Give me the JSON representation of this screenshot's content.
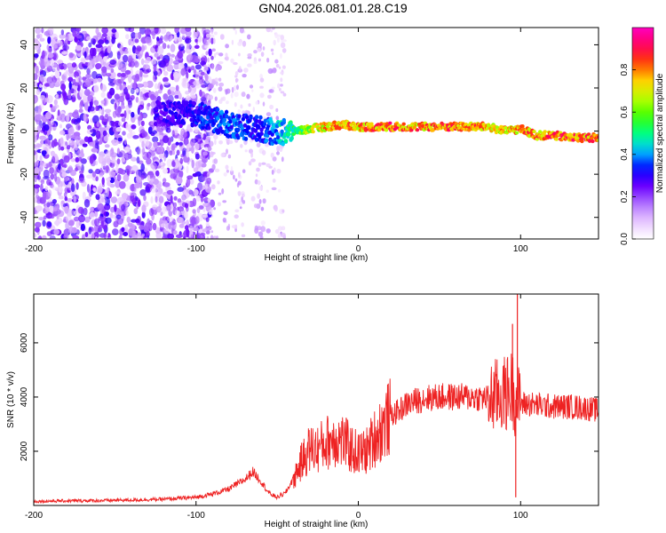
{
  "title": "GN04.2026.081.01.28.C19",
  "chart_data": [
    {
      "type": "heatmap",
      "xlabel": "Height of straight line (km)",
      "ylabel": "Frequency (Hz)",
      "xlim": [
        -200,
        148
      ],
      "ylim": [
        -50,
        48
      ],
      "x_ticks": [
        -200,
        -100,
        0,
        100
      ],
      "y_ticks": [
        -40,
        -20,
        0,
        20,
        40
      ],
      "colorbar": {
        "label": "Normalized spectral amplitude",
        "range": [
          0,
          1
        ],
        "ticks": [
          0.0,
          0.2,
          0.4,
          0.6,
          0.8
        ],
        "colors": [
          "#ffffff",
          "#e8c8ff",
          "#b070ff",
          "#6a00ff",
          "#0000ff",
          "#00c8ff",
          "#00ff80",
          "#40ff00",
          "#c0ff00",
          "#ffd000",
          "#ff4000",
          "#ff0060",
          "#ff00c0"
        ]
      },
      "ridge": {
        "x": [
          -120,
          -100,
          -80,
          -60,
          -50,
          -40,
          -30,
          -20,
          -10,
          0,
          20,
          40,
          60,
          80,
          90,
          100,
          110,
          120,
          130,
          148
        ],
        "freq": [
          8,
          8,
          3,
          1,
          -1,
          0,
          1,
          2,
          3,
          2,
          2,
          2,
          2,
          2,
          0,
          1,
          -2,
          -2,
          -3,
          -3
        ],
        "amplitude": [
          0.3,
          0.35,
          0.4,
          0.35,
          0.45,
          0.55,
          0.7,
          0.8,
          0.85,
          0.85,
          0.9,
          0.85,
          0.9,
          0.85,
          0.8,
          0.85,
          0.85,
          0.9,
          0.9,
          0.9
        ]
      }
    },
    {
      "type": "line",
      "xlabel": "Height of straight line (km)",
      "ylabel": "SNR (10 * v/v)",
      "xlim": [
        -200,
        148
      ],
      "ylim": [
        0,
        7800
      ],
      "x_ticks": [
        -200,
        -100,
        0,
        100
      ],
      "y_ticks": [
        2000,
        4000,
        6000
      ],
      "series": [
        {
          "color": "#ee2222",
          "x": [
            -200,
            -180,
            -160,
            -140,
            -120,
            -100,
            -90,
            -80,
            -70,
            -65,
            -60,
            -55,
            -50,
            -45,
            -40,
            -35,
            -30,
            -25,
            -20,
            -15,
            -10,
            -5,
            0,
            5,
            10,
            15,
            20,
            25,
            30,
            40,
            50,
            60,
            70,
            80,
            85,
            90,
            95,
            97,
            98,
            100,
            105,
            110,
            120,
            130,
            140,
            148
          ],
          "y": [
            150,
            170,
            180,
            200,
            230,
            300,
            420,
            600,
            950,
            1250,
            900,
            450,
            300,
            450,
            1000,
            1600,
            2100,
            2100,
            2300,
            2500,
            2400,
            2100,
            1900,
            2000,
            2500,
            2900,
            3300,
            3500,
            3750,
            3950,
            4000,
            4000,
            4000,
            3950,
            4050,
            4100,
            4300,
            3800,
            3900,
            3750,
            3750,
            3700,
            3650,
            3650,
            3600,
            3500
          ],
          "spikes": [
            {
              "x": 95,
              "y": 6700
            },
            {
              "x": 98,
              "y": 7800
            },
            {
              "x": 97,
              "y": 300
            }
          ]
        }
      ]
    }
  ]
}
